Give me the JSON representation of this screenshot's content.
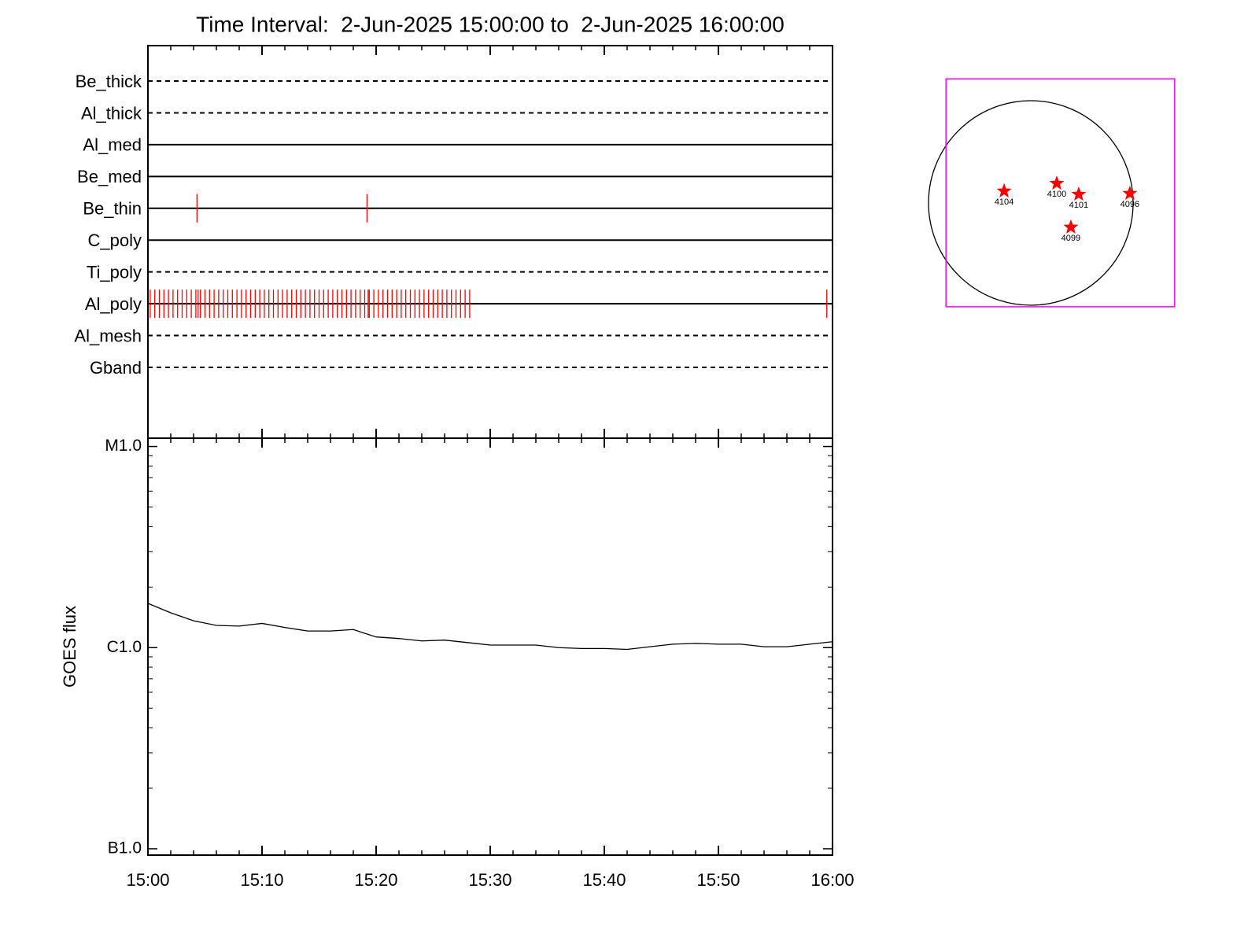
{
  "chart_data": [
    {
      "type": "timeline",
      "title": "Time Interval:  2-Jun-2025 15:00:00 to  2-Jun-2025 16:00:00",
      "categories": [
        "Be_thick",
        "Al_thick",
        "Al_med",
        "Be_med",
        "Be_thin",
        "C_poly",
        "Ti_poly",
        "Al_poly",
        "Al_mesh",
        "Gband"
      ],
      "line_styles": [
        "dashed",
        "dashed",
        "solid",
        "solid",
        "solid",
        "solid",
        "dashed",
        "solid",
        "dashed",
        "dashed"
      ],
      "events": [
        [],
        [],
        [],
        [],
        [
          4.3,
          19.2
        ],
        [],
        [],
        [
          0.2,
          0.6,
          1,
          1.4,
          1.8,
          2.2,
          2.6,
          3,
          3.4,
          3.8,
          4.2,
          4.6,
          5,
          5.4,
          5.8,
          6.2,
          6.6,
          7,
          7.4,
          7.8,
          8.2,
          8.6,
          9,
          9.4,
          9.8,
          10.2,
          10.6,
          11,
          11.4,
          11.8,
          12.2,
          12.6,
          13,
          13.4,
          13.8,
          14.2,
          14.6,
          15,
          15.4,
          15.8,
          16.2,
          16.6,
          17,
          17.4,
          17.8,
          18.2,
          18.6,
          19,
          19.4,
          19.8,
          20.2,
          20.6,
          21,
          21.4,
          21.8,
          22.2,
          22.6,
          23,
          23.4,
          23.8,
          24.2,
          24.6,
          25,
          25.4,
          25.8,
          26.2,
          26.6,
          27,
          27.4,
          27.8,
          28.2,
          4.4,
          19.3,
          59.5
        ],
        [],
        []
      ],
      "color": "#ff0000",
      "xlim": [
        0,
        60
      ],
      "xticks": [
        0,
        10,
        20,
        30,
        40,
        50,
        60
      ],
      "xminorticks": [
        2,
        4,
        6,
        8,
        12,
        14,
        16,
        18,
        22,
        24,
        26,
        28,
        32,
        34,
        36,
        38,
        42,
        44,
        46,
        48,
        52,
        54,
        56,
        58
      ]
    },
    {
      "type": "line",
      "ylabel": "GOES flux",
      "log_scale": true,
      "x": [
        0,
        2,
        4,
        6,
        8,
        10,
        12,
        14,
        16,
        18,
        20,
        22,
        24,
        26,
        28,
        30,
        32,
        34,
        36,
        38,
        40,
        42,
        44,
        46,
        48,
        50,
        52,
        54,
        56,
        58,
        60
      ],
      "values": [
        1.66e-06,
        1.49e-06,
        1.36e-06,
        1.29e-06,
        1.28e-06,
        1.32e-06,
        1.26e-06,
        1.21e-06,
        1.21e-06,
        1.23e-06,
        1.13e-06,
        1.11e-06,
        1.08e-06,
        1.09e-06,
        1.06e-06,
        1.03e-06,
        1.03e-06,
        1.03e-06,
        1e-06,
        9.9e-07,
        9.9e-07,
        9.8e-07,
        1.01e-06,
        1.04e-06,
        1.05e-06,
        1.04e-06,
        1.04e-06,
        1.01e-06,
        1.01e-06,
        1.04e-06,
        1.07e-06
      ],
      "color": "#000000",
      "xlim": [
        0,
        60
      ],
      "xticks": [
        {
          "value": 0,
          "label": "15:00"
        },
        {
          "value": 10,
          "label": "15:10"
        },
        {
          "value": 20,
          "label": "15:20"
        },
        {
          "value": 30,
          "label": "15:30"
        },
        {
          "value": 40,
          "label": "15:40"
        },
        {
          "value": 50,
          "label": "15:50"
        },
        {
          "value": 60,
          "label": "16:00"
        }
      ],
      "xminorticks": [
        2,
        4,
        6,
        8,
        12,
        14,
        16,
        18,
        22,
        24,
        26,
        28,
        32,
        34,
        36,
        38,
        42,
        44,
        46,
        48,
        52,
        54,
        56,
        58
      ],
      "ylim": [
        9.3e-08,
        1.1e-05
      ],
      "yticks": [
        {
          "value": 1e-07,
          "label": "B1.0"
        },
        {
          "value": 1e-06,
          "label": "C1.0"
        },
        {
          "value": 1e-05,
          "label": "M1.0"
        }
      ],
      "yminorticks": [
        2e-07,
        3e-07,
        4e-07,
        5e-07,
        6e-07,
        7e-07,
        8e-07,
        9e-07,
        2e-06,
        3e-06,
        4e-06,
        5e-06,
        6e-06,
        7e-06,
        8e-06,
        9e-06
      ]
    },
    {
      "type": "map",
      "disk_radius": 950,
      "disk_color": "#000000",
      "box": {
        "x": [
          -788,
          1336
        ],
        "y": [
          -964,
          1153
        ],
        "color": "#ff00ff"
      },
      "labels": [
        "4104",
        "4100",
        "4101",
        "4096",
        "4099"
      ],
      "x": [
        -248,
        241,
        445,
        920,
        372
      ],
      "y": [
        110,
        182,
        80,
        88,
        -226
      ],
      "color": "#ff0000"
    }
  ]
}
